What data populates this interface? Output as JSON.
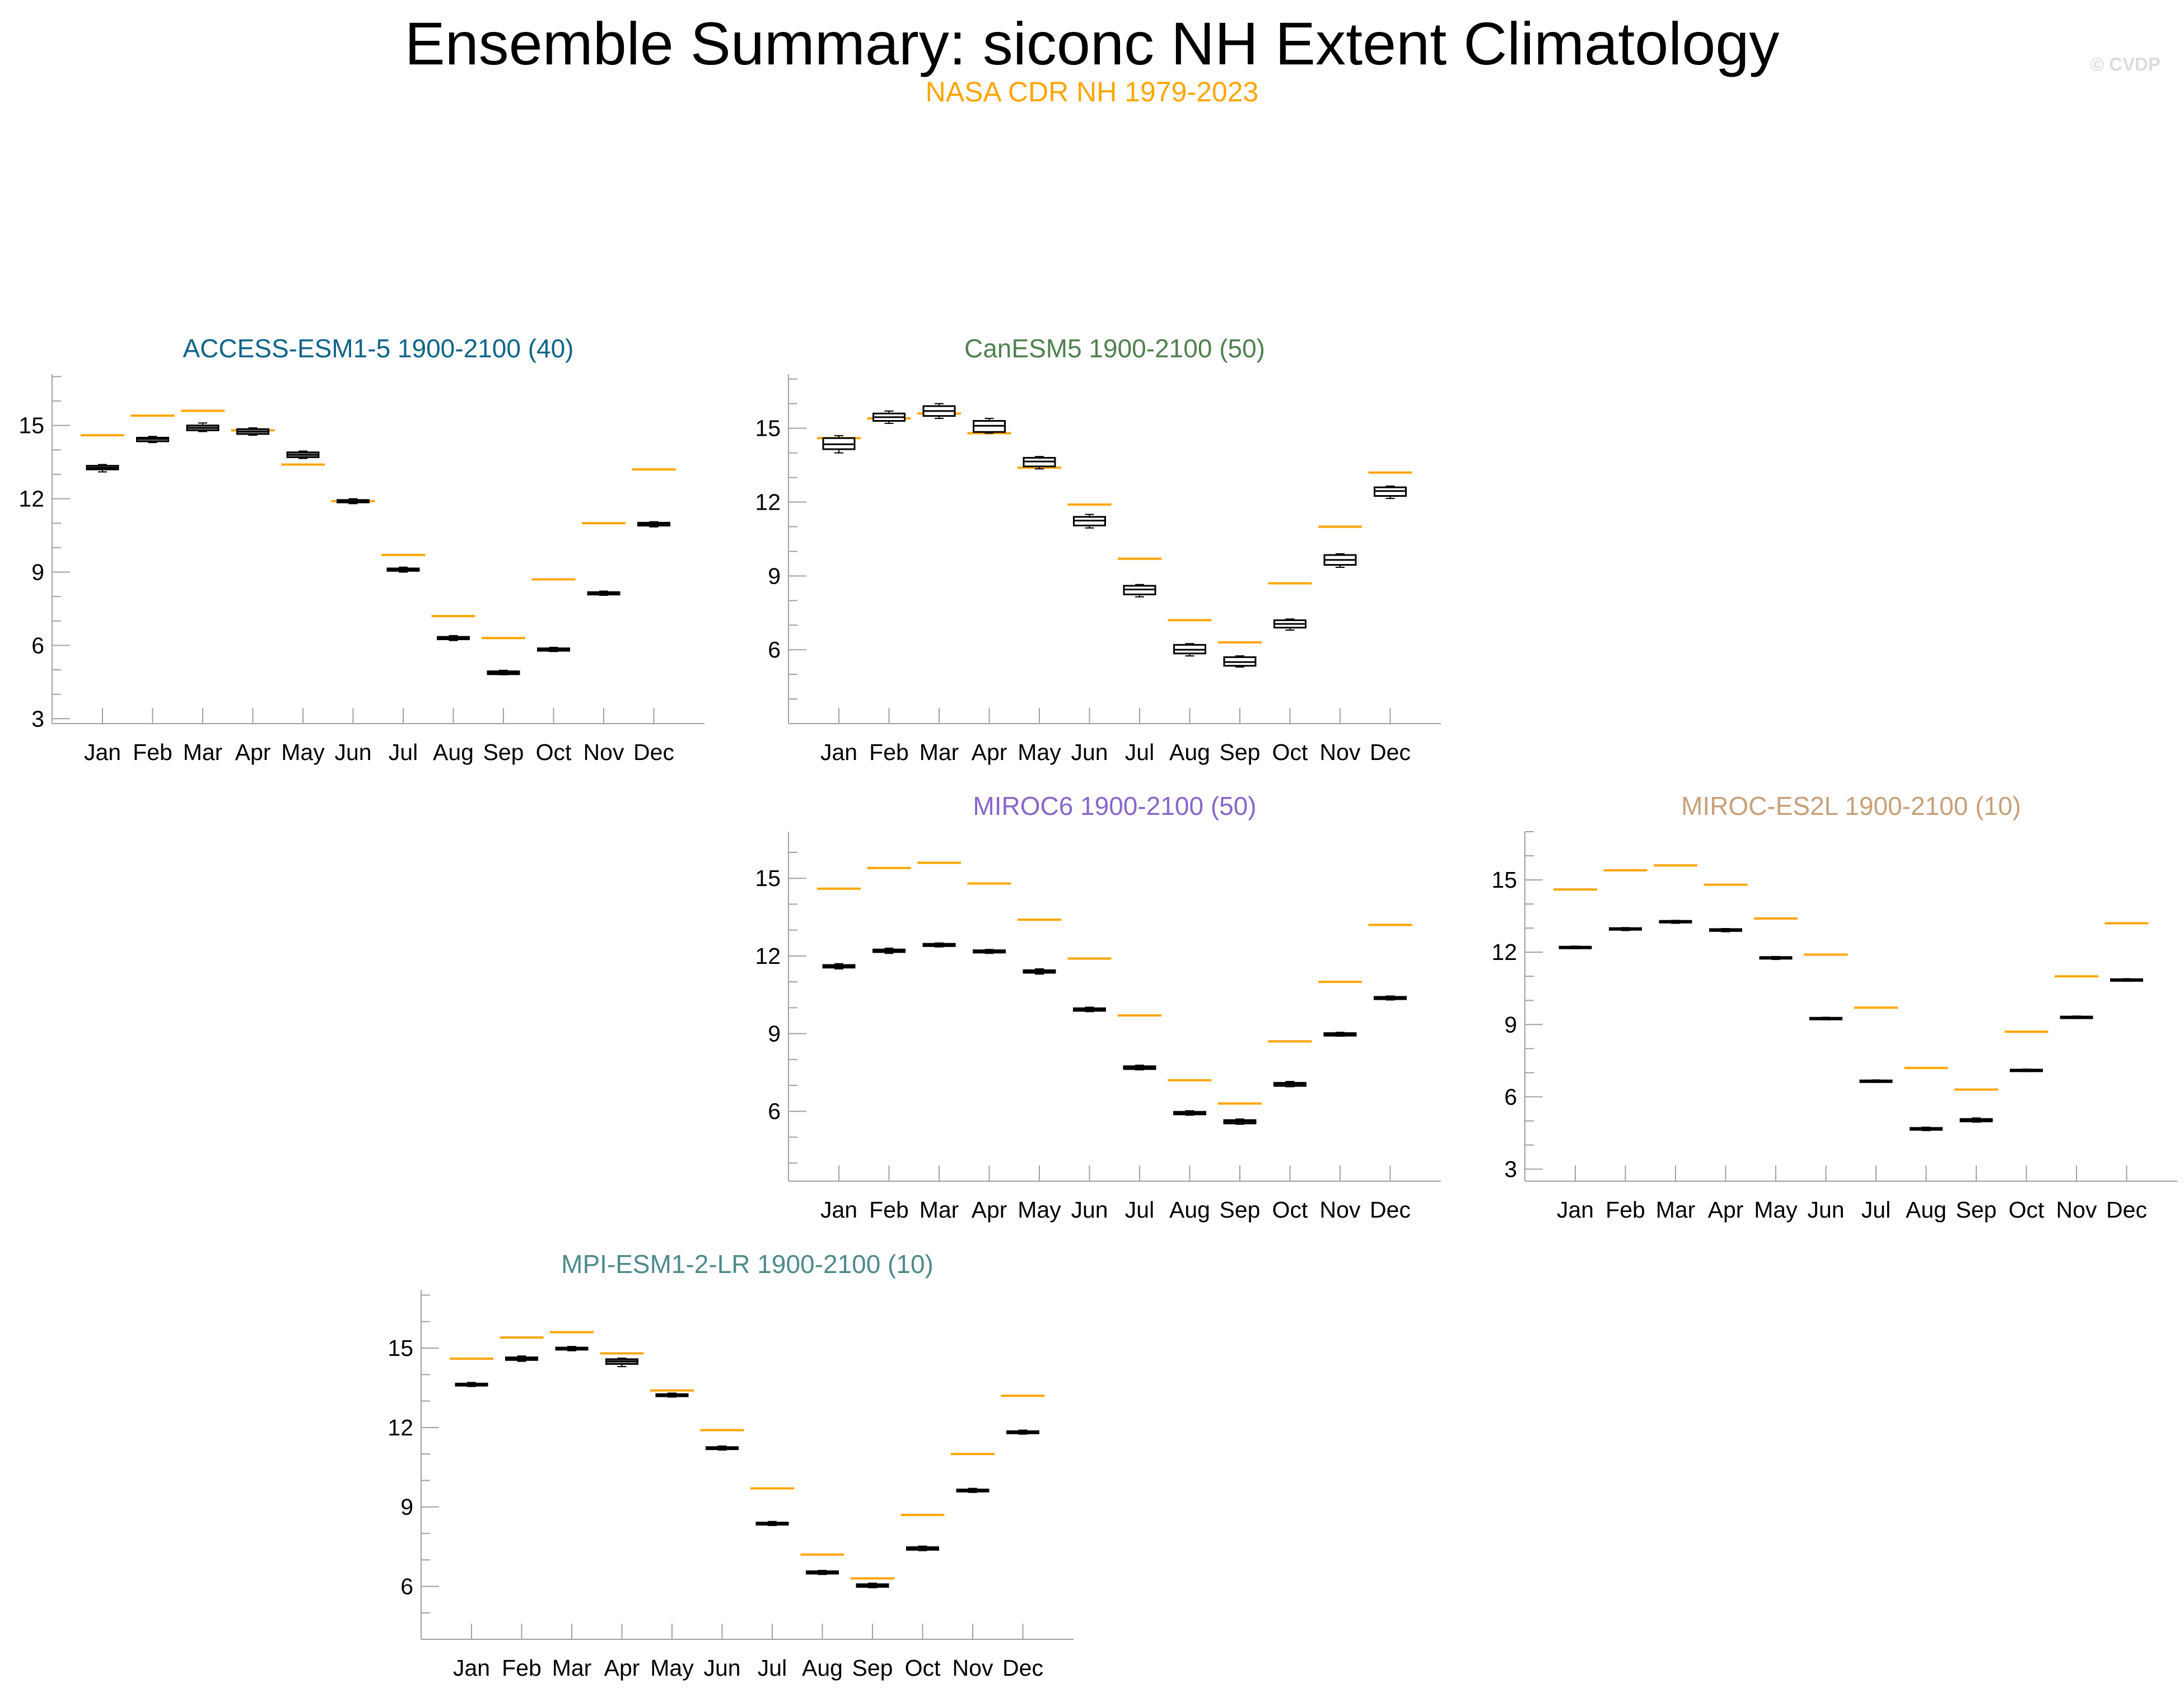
{
  "title": "Ensemble Summary: siconc NH Extent Climatology",
  "subtitle": "NASA CDR NH 1979-2023",
  "watermark": "© CVDP",
  "colors": {
    "observation": "#ffa500",
    "title_text": "#000000",
    "box_fill_default": "#ffffff",
    "box_outline": "#000000",
    "axis": "#a0a0a0"
  },
  "chart_data": [
    {
      "type": "box",
      "title": "ACCESS-ESM1-5 1900-2100 (40)",
      "title_color": "#0f6489",
      "box_fill": "#8f8f8f",
      "categories": [
        "Jan",
        "Feb",
        "Mar",
        "Apr",
        "May",
        "Jun",
        "Jul",
        "Aug",
        "Sep",
        "Oct",
        "Nov",
        "Dec"
      ],
      "yticks": [
        3,
        6,
        9,
        12,
        15
      ],
      "ylim": [
        2.8,
        17.1
      ],
      "observed": [
        14.6,
        15.4,
        15.6,
        14.8,
        13.4,
        11.9,
        9.7,
        7.2,
        6.3,
        8.7,
        11.0,
        13.2
      ],
      "boxes": [
        {
          "min": 13.1,
          "q1": 13.2,
          "median": 13.27,
          "q3": 13.35,
          "max": 13.4
        },
        {
          "min": 14.3,
          "q1": 14.35,
          "median": 14.45,
          "q3": 14.5,
          "max": 14.55
        },
        {
          "min": 14.75,
          "q1": 14.8,
          "median": 14.9,
          "q3": 15.0,
          "max": 15.1
        },
        {
          "min": 14.6,
          "q1": 14.65,
          "median": 14.75,
          "q3": 14.85,
          "max": 14.9
        },
        {
          "min": 13.65,
          "q1": 13.7,
          "median": 13.8,
          "q3": 13.9,
          "max": 13.95
        },
        {
          "min": 11.8,
          "q1": 11.85,
          "median": 11.9,
          "q3": 11.95,
          "max": 12.0
        },
        {
          "min": 9.0,
          "q1": 9.05,
          "median": 9.1,
          "q3": 9.15,
          "max": 9.2
        },
        {
          "min": 6.2,
          "q1": 6.25,
          "median": 6.3,
          "q3": 6.35,
          "max": 6.4
        },
        {
          "min": 4.8,
          "q1": 4.82,
          "median": 4.88,
          "q3": 4.94,
          "max": 4.98
        },
        {
          "min": 5.75,
          "q1": 5.78,
          "median": 5.82,
          "q3": 5.88,
          "max": 5.92
        },
        {
          "min": 8.05,
          "q1": 8.08,
          "median": 8.13,
          "q3": 8.18,
          "max": 8.22
        },
        {
          "min": 10.85,
          "q1": 10.9,
          "median": 10.96,
          "q3": 11.02,
          "max": 11.06
        }
      ]
    },
    {
      "type": "box",
      "title": "CanESM5 1900-2100 (50)",
      "title_color": "#4f8050",
      "box_fill": "#ffffff",
      "categories": [
        "Jan",
        "Feb",
        "Mar",
        "Apr",
        "May",
        "Jun",
        "Jul",
        "Aug",
        "Sep",
        "Oct",
        "Nov",
        "Dec"
      ],
      "yticks": [
        6,
        9,
        12,
        15
      ],
      "ylim": [
        3.0,
        17.2
      ],
      "observed": [
        14.6,
        15.4,
        15.6,
        14.8,
        13.4,
        11.9,
        9.7,
        7.2,
        6.3,
        8.7,
        11.0,
        13.2
      ],
      "boxes": [
        {
          "min": 14.0,
          "q1": 14.15,
          "median": 14.35,
          "q3": 14.6,
          "max": 14.7
        },
        {
          "min": 15.2,
          "q1": 15.3,
          "median": 15.45,
          "q3": 15.6,
          "max": 15.7
        },
        {
          "min": 15.4,
          "q1": 15.5,
          "median": 15.7,
          "q3": 15.9,
          "max": 16.0
        },
        {
          "min": 14.8,
          "q1": 14.85,
          "median": 15.1,
          "q3": 15.3,
          "max": 15.4
        },
        {
          "min": 13.35,
          "q1": 13.45,
          "median": 13.65,
          "q3": 13.8,
          "max": 13.85
        },
        {
          "min": 10.95,
          "q1": 11.05,
          "median": 11.25,
          "q3": 11.4,
          "max": 11.5
        },
        {
          "min": 8.15,
          "q1": 8.25,
          "median": 8.45,
          "q3": 8.6,
          "max": 8.65
        },
        {
          "min": 5.75,
          "q1": 5.85,
          "median": 6.0,
          "q3": 6.2,
          "max": 6.25
        },
        {
          "min": 5.3,
          "q1": 5.35,
          "median": 5.5,
          "q3": 5.7,
          "max": 5.75
        },
        {
          "min": 6.8,
          "q1": 6.9,
          "median": 7.05,
          "q3": 7.2,
          "max": 7.25
        },
        {
          "min": 9.35,
          "q1": 9.45,
          "median": 9.65,
          "q3": 9.85,
          "max": 9.9
        },
        {
          "min": 12.15,
          "q1": 12.25,
          "median": 12.45,
          "q3": 12.6,
          "max": 12.65
        }
      ]
    },
    {
      "type": "box",
      "title": "MIROC6 1900-2100 (50)",
      "title_color": "#8866cc",
      "box_fill": "#8f8f8f",
      "categories": [
        "Jan",
        "Feb",
        "Mar",
        "Apr",
        "May",
        "Jun",
        "Jul",
        "Aug",
        "Sep",
        "Oct",
        "Nov",
        "Dec"
      ],
      "yticks": [
        6,
        9,
        12,
        15
      ],
      "ylim": [
        3.3,
        16.8
      ],
      "observed": [
        14.6,
        15.4,
        15.6,
        14.8,
        13.4,
        11.9,
        9.7,
        7.2,
        6.3,
        8.7,
        11.0,
        13.2
      ],
      "boxes": [
        {
          "min": 11.5,
          "q1": 11.55,
          "median": 11.6,
          "q3": 11.65,
          "max": 11.7
        },
        {
          "min": 12.1,
          "q1": 12.15,
          "median": 12.2,
          "q3": 12.25,
          "max": 12.3
        },
        {
          "min": 12.35,
          "q1": 12.38,
          "median": 12.42,
          "q3": 12.47,
          "max": 12.5
        },
        {
          "min": 12.1,
          "q1": 12.13,
          "median": 12.18,
          "q3": 12.22,
          "max": 12.25
        },
        {
          "min": 11.3,
          "q1": 11.35,
          "median": 11.4,
          "q3": 11.45,
          "max": 11.5
        },
        {
          "min": 9.85,
          "q1": 9.88,
          "median": 9.93,
          "q3": 9.98,
          "max": 10.02
        },
        {
          "min": 7.6,
          "q1": 7.63,
          "median": 7.68,
          "q3": 7.74,
          "max": 7.78
        },
        {
          "min": 5.85,
          "q1": 5.88,
          "median": 5.93,
          "q3": 5.98,
          "max": 6.02
        },
        {
          "min": 5.5,
          "q1": 5.53,
          "median": 5.6,
          "q3": 5.66,
          "max": 5.7
        },
        {
          "min": 6.95,
          "q1": 6.98,
          "median": 7.05,
          "q3": 7.1,
          "max": 7.15
        },
        {
          "min": 8.9,
          "q1": 8.92,
          "median": 8.97,
          "q3": 9.02,
          "max": 9.05
        },
        {
          "min": 10.3,
          "q1": 10.33,
          "median": 10.38,
          "q3": 10.42,
          "max": 10.45
        }
      ]
    },
    {
      "type": "box",
      "title": "MIROC-ES2L 1900-2100 (10)",
      "title_color": "#c8a07a",
      "box_fill": "#8f8f8f",
      "categories": [
        "Jan",
        "Feb",
        "Mar",
        "Apr",
        "May",
        "Jun",
        "Jul",
        "Aug",
        "Sep",
        "Oct",
        "Nov",
        "Dec"
      ],
      "yticks": [
        3,
        6,
        9,
        12,
        15
      ],
      "ylim": [
        2.5,
        17.0
      ],
      "observed": [
        14.6,
        15.4,
        15.6,
        14.8,
        13.4,
        11.9,
        9.7,
        7.2,
        6.3,
        8.7,
        11.0,
        13.2
      ],
      "boxes": [
        {
          "min": 12.15,
          "q1": 12.18,
          "median": 12.2,
          "q3": 12.23,
          "max": 12.25
        },
        {
          "min": 12.9,
          "q1": 12.93,
          "median": 12.96,
          "q3": 13.0,
          "max": 13.02
        },
        {
          "min": 13.2,
          "q1": 13.23,
          "median": 13.26,
          "q3": 13.3,
          "max": 13.32
        },
        {
          "min": 12.85,
          "q1": 12.88,
          "median": 12.92,
          "q3": 12.96,
          "max": 12.98
        },
        {
          "min": 11.7,
          "q1": 11.73,
          "median": 11.76,
          "q3": 11.8,
          "max": 11.82
        },
        {
          "min": 9.2,
          "q1": 9.22,
          "median": 9.25,
          "q3": 9.28,
          "max": 9.3
        },
        {
          "min": 6.6,
          "q1": 6.62,
          "median": 6.65,
          "q3": 6.68,
          "max": 6.7
        },
        {
          "min": 4.6,
          "q1": 4.63,
          "median": 4.67,
          "q3": 4.71,
          "max": 4.74
        },
        {
          "min": 4.95,
          "q1": 4.98,
          "median": 5.03,
          "q3": 5.08,
          "max": 5.12
        },
        {
          "min": 7.05,
          "q1": 7.07,
          "median": 7.1,
          "q3": 7.13,
          "max": 7.15
        },
        {
          "min": 9.25,
          "q1": 9.27,
          "median": 9.3,
          "q3": 9.33,
          "max": 9.35
        },
        {
          "min": 10.8,
          "q1": 10.82,
          "median": 10.85,
          "q3": 10.88,
          "max": 10.9
        }
      ]
    },
    {
      "type": "box",
      "title": "MPI-ESM1-2-LR 1900-2100 (10)",
      "title_color": "#4f8a8b",
      "box_fill": "#8f8f8f",
      "categories": [
        "Jan",
        "Feb",
        "Mar",
        "Apr",
        "May",
        "Jun",
        "Jul",
        "Aug",
        "Sep",
        "Oct",
        "Nov",
        "Dec"
      ],
      "yticks": [
        6,
        9,
        12,
        15
      ],
      "ylim": [
        4.0,
        17.2
      ],
      "observed": [
        14.6,
        15.4,
        15.6,
        14.8,
        13.4,
        11.9,
        9.7,
        7.2,
        6.3,
        8.7,
        11.0,
        13.2
      ],
      "boxes": [
        {
          "min": 13.55,
          "q1": 13.58,
          "median": 13.62,
          "q3": 13.66,
          "max": 13.7
        },
        {
          "min": 14.5,
          "q1": 14.55,
          "median": 14.6,
          "q3": 14.65,
          "max": 14.7
        },
        {
          "min": 14.9,
          "q1": 14.94,
          "median": 14.98,
          "q3": 15.02,
          "max": 15.06
        },
        {
          "min": 14.3,
          "q1": 14.4,
          "median": 14.5,
          "q3": 14.58,
          "max": 14.62
        },
        {
          "min": 13.15,
          "q1": 13.18,
          "median": 13.22,
          "q3": 13.26,
          "max": 13.3
        },
        {
          "min": 11.15,
          "q1": 11.18,
          "median": 11.22,
          "q3": 11.26,
          "max": 11.3
        },
        {
          "min": 8.3,
          "q1": 8.33,
          "median": 8.37,
          "q3": 8.41,
          "max": 8.45
        },
        {
          "min": 6.45,
          "q1": 6.48,
          "median": 6.52,
          "q3": 6.57,
          "max": 6.6
        },
        {
          "min": 5.95,
          "q1": 5.98,
          "median": 6.03,
          "q3": 6.08,
          "max": 6.12
        },
        {
          "min": 7.35,
          "q1": 7.38,
          "median": 7.43,
          "q3": 7.48,
          "max": 7.52
        },
        {
          "min": 9.55,
          "q1": 9.58,
          "median": 9.62,
          "q3": 9.66,
          "max": 9.7
        },
        {
          "min": 11.75,
          "q1": 11.78,
          "median": 11.82,
          "q3": 11.86,
          "max": 11.9
        }
      ]
    }
  ]
}
